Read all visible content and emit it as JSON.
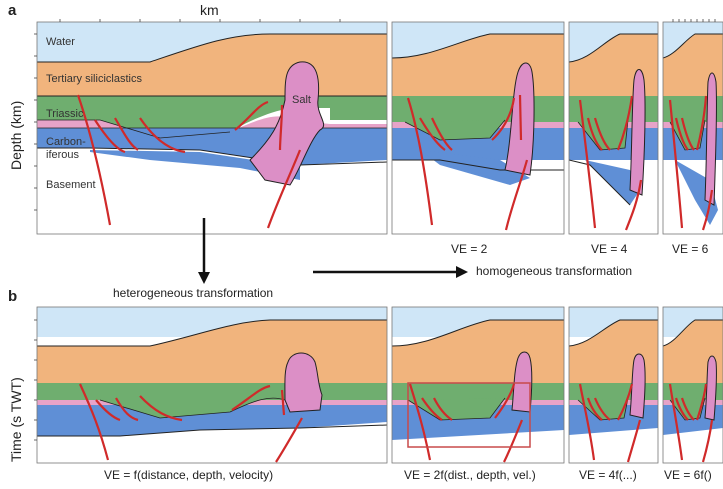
{
  "panel_a": {
    "letter": "a",
    "x_axis_label": "km",
    "y_axis_label": "Depth (km)",
    "layers": {
      "water": "Water",
      "tertiary": "Tertiary siliciclastics",
      "triassic": "Triassic",
      "carboniferous_1": "Carbon-",
      "carboniferous_2": "iferous",
      "basement": "Basement",
      "salt": "Salt"
    },
    "ve_labels": [
      "VE = 2",
      "VE = 4",
      "VE = 6"
    ]
  },
  "transformations": {
    "heterogeneous": "heterogeneous transformation",
    "homogeneous": "homogeneous transformation"
  },
  "panel_b": {
    "letter": "b",
    "y_axis_label": "Time (s TWT)",
    "ve_labels": [
      "VE = f(distance, depth, velocity)",
      "VE = 2f(dist., depth, vel.)",
      "VE = 4f(...)",
      "VE = 6f()"
    ]
  },
  "colors": {
    "water": "#cfe6f7",
    "tertiary": "#f1b47d",
    "triassic": "#6fae6f",
    "permian_thin": "#e7a3c8",
    "carboniferous": "#5f8fd6",
    "basement": "#ffffff",
    "salt": "#dc8fc6",
    "faults": "#d02a2a",
    "highlight_box": "#c84a4a"
  }
}
